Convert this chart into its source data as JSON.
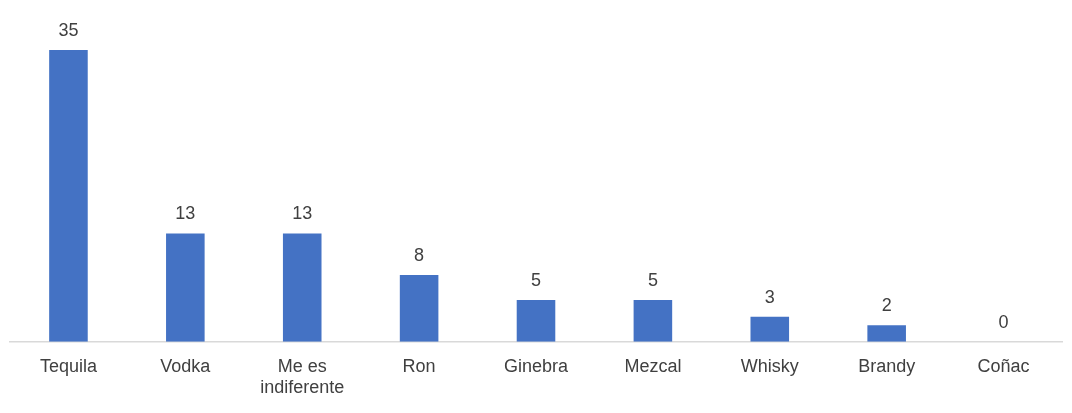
{
  "chart_data": {
    "type": "bar",
    "categories": [
      "Tequila",
      "Vodka",
      "Me es indiferente",
      "Ron",
      "Ginebra",
      "Mezcal",
      "Whisky",
      "Brandy",
      "Coñac"
    ],
    "values": [
      35,
      13,
      13,
      8,
      5,
      5,
      3,
      2,
      0
    ],
    "color": "#4472c4",
    "data_labels": true,
    "grid": false,
    "legend": false
  }
}
